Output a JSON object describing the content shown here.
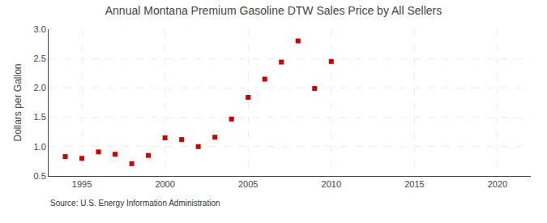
{
  "chart_data": {
    "type": "scatter",
    "title": "Annual Montana Premium Gasoline DTW Sales Price by All Sellers",
    "ylabel": "Dollars per Gallon",
    "source": "Source: U.S. Energy Information Administration",
    "x": [
      1994,
      1995,
      1996,
      1997,
      1998,
      1999,
      2000,
      2001,
      2002,
      2003,
      2004,
      2005,
      2006,
      2007,
      2008,
      2009,
      2010
    ],
    "values": [
      0.83,
      0.8,
      0.91,
      0.87,
      0.71,
      0.85,
      1.15,
      1.12,
      1.0,
      1.16,
      1.47,
      1.84,
      2.15,
      2.44,
      2.8,
      1.99,
      2.45
    ],
    "color": "#cc0000",
    "marker": "square",
    "xlim": [
      1993,
      2022
    ],
    "xticks": [
      1995,
      2000,
      2005,
      2010,
      2015,
      2020
    ],
    "ylim": [
      0.5,
      3.0
    ],
    "yticks": [
      0.5,
      {
        "value": 1.0,
        "label": "1.0"
      },
      1.5,
      {
        "value": 2.0,
        "label": "2.0"
      },
      2.5,
      {
        "value": 3.0,
        "label": "3.0"
      }
    ],
    "grid": true
  }
}
